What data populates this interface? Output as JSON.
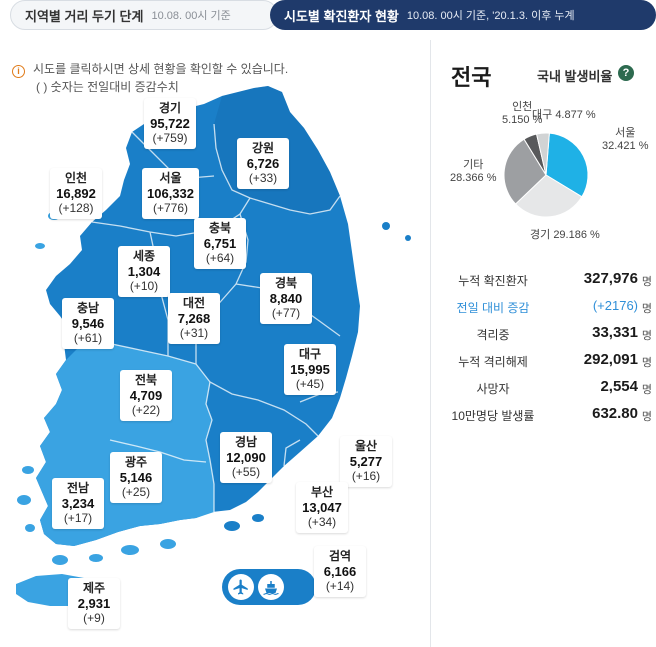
{
  "tabs": {
    "left": {
      "title": "지역별 거리 두기 단계",
      "sub": "10.08. 00시 기준"
    },
    "right": {
      "title": "시도별 확진환자 현황",
      "sub": "10.08. 00시 기준, '20.1.3. 이후 누계"
    }
  },
  "info": {
    "line1": "시도를 클릭하시면 상세 현황을 확인할 수 있습니다.",
    "line2": "( ) 숫자는 전일대비 증감수치"
  },
  "regions": [
    {
      "name": "경기",
      "count": "95,722",
      "delta": "(+759)"
    },
    {
      "name": "강원",
      "count": "6,726",
      "delta": "(+33)"
    },
    {
      "name": "인천",
      "count": "16,892",
      "delta": "(+128)"
    },
    {
      "name": "서울",
      "count": "106,332",
      "delta": "(+776)"
    },
    {
      "name": "충북",
      "count": "6,751",
      "delta": "(+64)"
    },
    {
      "name": "세종",
      "count": "1,304",
      "delta": "(+10)"
    },
    {
      "name": "충남",
      "count": "9,546",
      "delta": "(+61)"
    },
    {
      "name": "대전",
      "count": "7,268",
      "delta": "(+31)"
    },
    {
      "name": "경북",
      "count": "8,840",
      "delta": "(+77)"
    },
    {
      "name": "대구",
      "count": "15,995",
      "delta": "(+45)"
    },
    {
      "name": "전북",
      "count": "4,709",
      "delta": "(+22)"
    },
    {
      "name": "경남",
      "count": "12,090",
      "delta": "(+55)"
    },
    {
      "name": "울산",
      "count": "5,277",
      "delta": "(+16)"
    },
    {
      "name": "광주",
      "count": "5,146",
      "delta": "(+25)"
    },
    {
      "name": "전남",
      "count": "3,234",
      "delta": "(+17)"
    },
    {
      "name": "부산",
      "count": "13,047",
      "delta": "(+34)"
    },
    {
      "name": "제주",
      "count": "2,931",
      "delta": "(+9)"
    },
    {
      "name": "검역",
      "count": "6,166",
      "delta": "(+14)"
    }
  ],
  "transport": {
    "airport_icon": "airplane-icon",
    "port_icon": "ship-icon"
  },
  "summary": {
    "title": "전국",
    "ratio_title": "국내 발생비율",
    "help": "?"
  },
  "chart_data": {
    "type": "pie",
    "slices": [
      {
        "label": "서울",
        "value": 32.421,
        "display": "32.421 %",
        "color": "#1fb1e6"
      },
      {
        "label": "경기",
        "value": 29.186,
        "display": "29.186 %",
        "color": "#e6e7e8"
      },
      {
        "label": "기타",
        "value": 28.366,
        "display": "28.366 %",
        "color": "#9d9fa2"
      },
      {
        "label": "인천",
        "value": 5.15,
        "display": "5.150 %",
        "color": "#58595b"
      },
      {
        "label": "대구",
        "value": 4.877,
        "display": "4.877 %",
        "color": "#d1d3d4"
      }
    ]
  },
  "stats": [
    {
      "label": "누적 확진환자",
      "value": "327,976",
      "unit": "명"
    },
    {
      "label": "전일 대비 증감",
      "value": "(+2176)",
      "unit": "명"
    },
    {
      "label": "격리중",
      "value": "33,331",
      "unit": "명"
    },
    {
      "label": "누적 격리해제",
      "value": "292,091",
      "unit": "명"
    },
    {
      "label": "사망자",
      "value": "2,554",
      "unit": "명"
    },
    {
      "label": "10만명당 발생률",
      "value": "632.80",
      "unit": "명"
    }
  ],
  "colors": {
    "land_main": "#1a7fc8",
    "land_light": "#3aa3e2",
    "land_dark": "#1467a8",
    "border": "#ffffff",
    "highlight": "#2f8fd8"
  }
}
